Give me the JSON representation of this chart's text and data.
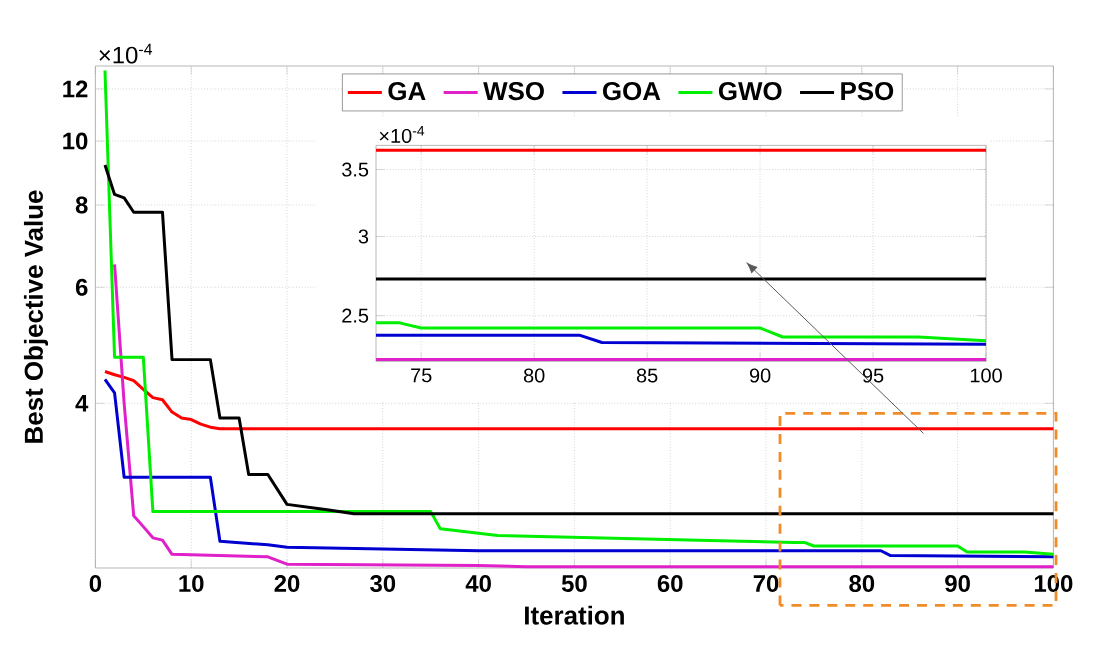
{
  "chart_data": [
    {
      "type": "line",
      "xlabel": "Iteration",
      "ylabel": "Best Objective Value",
      "log": "y",
      "grid": true,
      "legend": "top",
      "xlim": [
        0,
        100
      ],
      "ylim": [
        2.25,
        13
      ],
      "xticks": [
        0,
        10,
        20,
        30,
        40,
        50,
        60,
        70,
        80,
        90,
        100
      ],
      "yticks": [
        4,
        6,
        8,
        10,
        12
      ],
      "annotations": [
        "×10$^{-4}$"
      ],
      "series": [
        {
          "name": "GA",
          "color": "#ff0000",
          "x": [
            1,
            2,
            3,
            4,
            5,
            6,
            7,
            8,
            9,
            10,
            11,
            12,
            13,
            100
          ],
          "values": [
            4.47,
            4.42,
            4.38,
            4.33,
            4.2,
            4.08,
            4.05,
            3.88,
            3.8,
            3.78,
            3.72,
            3.68,
            3.66,
            3.66
          ]
        },
        {
          "name": "WSO",
          "color": "#e020c8",
          "x": [
            2,
            3,
            4,
            5,
            6,
            7,
            8,
            18,
            20,
            40,
            45,
            100
          ],
          "values": [
            6.5,
            4.0,
            2.7,
            2.6,
            2.5,
            2.48,
            2.36,
            2.34,
            2.28,
            2.27,
            2.26,
            2.26
          ]
        },
        {
          "name": "GOA",
          "color": "#0000d0",
          "x": [
            1,
            2,
            3,
            12,
            13,
            18,
            20,
            40,
            82,
            83,
            100
          ],
          "values": [
            4.35,
            4.15,
            3.09,
            3.09,
            2.47,
            2.44,
            2.42,
            2.39,
            2.39,
            2.35,
            2.34
          ]
        },
        {
          "name": "GWO",
          "color": "#00ee00",
          "x": [
            1,
            2,
            5,
            6,
            35,
            36,
            42,
            63,
            73,
            74,
            75,
            90,
            91,
            97,
            100
          ],
          "values": [
            12.8,
            4.7,
            4.7,
            2.74,
            2.74,
            2.58,
            2.52,
            2.48,
            2.46,
            2.46,
            2.43,
            2.43,
            2.38,
            2.38,
            2.36
          ]
        },
        {
          "name": "PSO",
          "color": "#000000",
          "x": [
            1,
            2,
            3,
            4,
            7,
            8,
            12,
            13,
            15,
            16,
            18,
            20,
            24,
            27,
            100
          ],
          "values": [
            9.2,
            8.3,
            8.2,
            7.8,
            7.8,
            4.66,
            4.66,
            3.8,
            3.8,
            3.12,
            3.12,
            2.81,
            2.76,
            2.72,
            2.72
          ]
        }
      ]
    },
    {
      "type": "line",
      "log": "y",
      "grid": true,
      "xlim": [
        73,
        100
      ],
      "ylim": [
        2.25,
        3.7
      ],
      "xticks": [
        75,
        80,
        85,
        90,
        95,
        100
      ],
      "yticks": [
        2.5,
        3,
        3.5
      ],
      "annotations": [
        "×10$^{-4}$"
      ],
      "series": [
        {
          "color": "#ff0000",
          "x": [
            73,
            100
          ],
          "values": [
            3.66,
            3.66
          ]
        },
        {
          "color": "#e020c8",
          "x": [
            73,
            100
          ],
          "values": [
            2.26,
            2.26
          ]
        },
        {
          "color": "#0000d0",
          "x": [
            73,
            82,
            83,
            100
          ],
          "values": [
            2.39,
            2.39,
            2.35,
            2.34
          ]
        },
        {
          "color": "#00ee00",
          "x": [
            73,
            74,
            75,
            90,
            91,
            97,
            100
          ],
          "values": [
            2.46,
            2.46,
            2.43,
            2.43,
            2.38,
            2.38,
            2.36
          ]
        },
        {
          "color": "#000000",
          "x": [
            73,
            100
          ],
          "values": [
            2.72,
            2.72
          ]
        }
      ]
    }
  ]
}
